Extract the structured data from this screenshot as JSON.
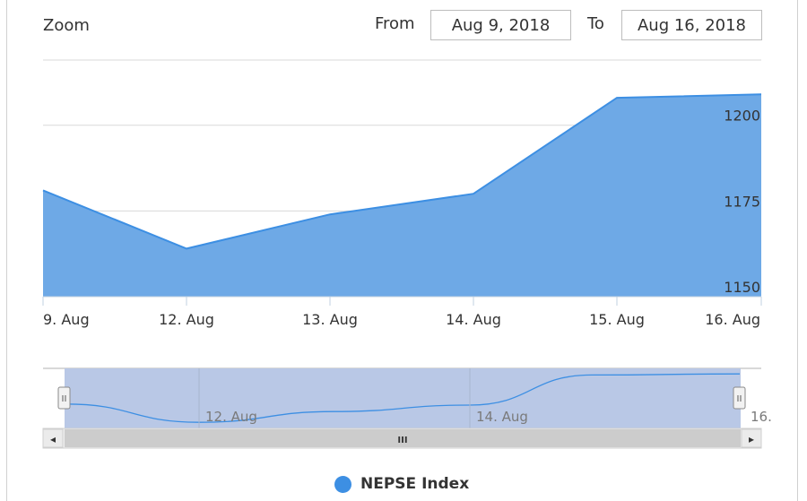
{
  "zoom": {
    "label": "Zoom"
  },
  "range": {
    "from_label": "From",
    "from_value": "Aug 9, 2018",
    "to_label": "To",
    "to_value": "Aug 16, 2018"
  },
  "colors": {
    "area_fill": "#6ea9e6",
    "area_line": "#3d8fe3",
    "navigator_band": "#b9c8e6",
    "scrollbar": "#cccccc"
  },
  "chart_data": {
    "type": "area",
    "x": [
      "9. Aug",
      "12. Aug",
      "13. Aug",
      "14. Aug",
      "15. Aug",
      "16. Aug"
    ],
    "series": [
      {
        "name": "NEPSE Index",
        "values": [
          1181,
          1164,
          1174,
          1180,
          1208,
          1209
        ]
      }
    ],
    "y_ticks": [
      1150,
      1175,
      1200
    ],
    "ylim": [
      1150,
      1219
    ],
    "grid": true,
    "legend_position": "bottom-center"
  },
  "navigator": {
    "x_labels": [
      "12. Aug",
      "14. Aug",
      "16."
    ],
    "handle_glyph": "II",
    "scroll_grip": "III",
    "scroll_left_arrow": "◂",
    "scroll_right_arrow": "▸"
  }
}
